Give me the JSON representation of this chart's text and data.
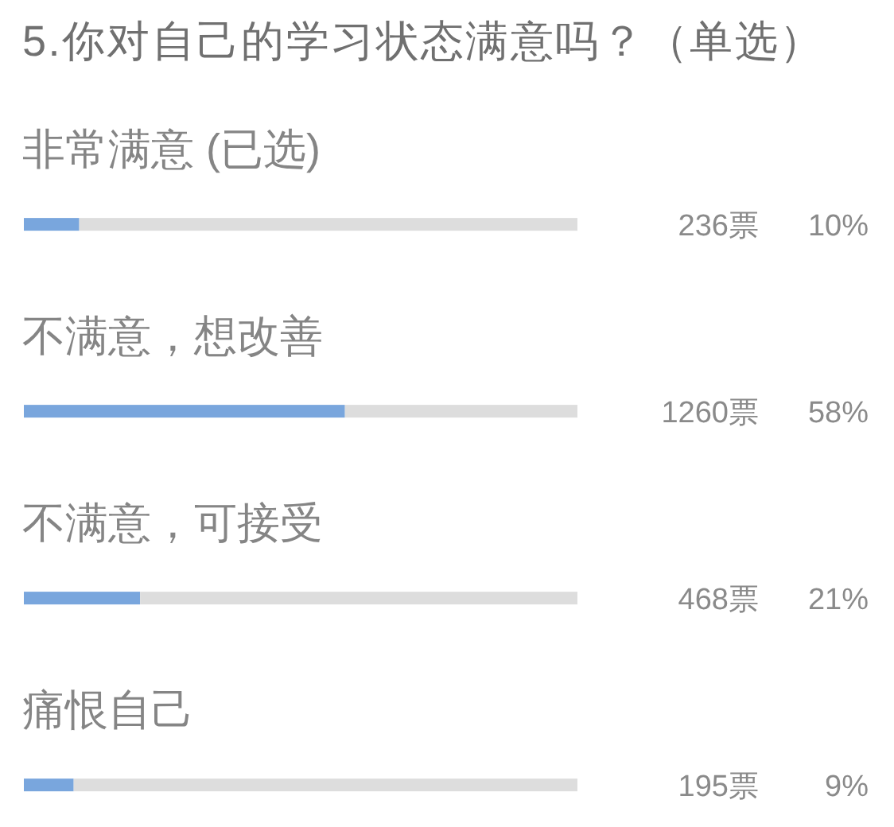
{
  "chart_data": {
    "type": "bar",
    "orientation": "horizontal",
    "title": "5.你对自己的学习状态满意吗？（单选）",
    "categories": [
      "非常满意 (已选)",
      "不满意，想改善",
      "不满意，可接受",
      "痛恨自己"
    ],
    "values": [
      10,
      58,
      21,
      9
    ],
    "xlim": [
      0,
      100
    ],
    "color": "#79a6dd",
    "value_labels": [
      "10%",
      "58%",
      "21%",
      "9%"
    ],
    "annotations": [
      "236票",
      "1260票",
      "468票",
      "195票"
    ]
  }
}
